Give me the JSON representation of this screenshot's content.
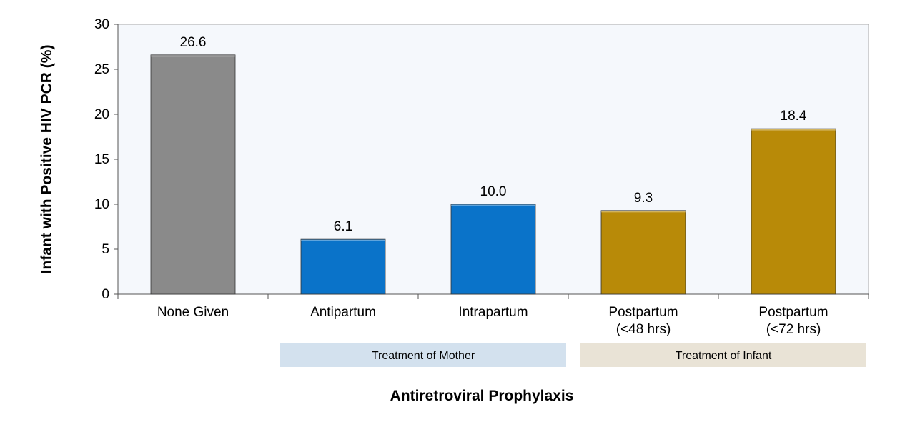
{
  "chart_data": {
    "type": "bar",
    "title": "",
    "xlabel": "Antiretroviral Prophylaxis",
    "ylabel": "Infant with Positive HIV PCR (%)",
    "ylim": [
      0,
      30
    ],
    "yticks": [
      0,
      5,
      10,
      15,
      20,
      25,
      30
    ],
    "grid": false,
    "legend": "none",
    "categories": [
      [
        "None Given"
      ],
      [
        "Antipartum"
      ],
      [
        "Intrapartum"
      ],
      [
        "Postpartum",
        "(<48 hrs)"
      ],
      [
        "Postpartum",
        "(<72 hrs)"
      ]
    ],
    "values": [
      26.6,
      6.1,
      10.0,
      9.3,
      18.4
    ],
    "value_labels": [
      "26.6",
      "6.1",
      "10.0",
      "9.3",
      "18.4"
    ],
    "bar_colors": [
      "#8a8a8a",
      "#0a73c9",
      "#0a73c9",
      "#b88a08",
      "#b88a08"
    ],
    "groups": [
      {
        "label": "Treatment of Mother",
        "categories": [
          1,
          2
        ],
        "color": "#d3e1ee"
      },
      {
        "label": "Treatment of Infant",
        "categories": [
          3,
          4
        ],
        "color": "#e9e3d6"
      }
    ],
    "plot_background": "#f5f8fc"
  }
}
